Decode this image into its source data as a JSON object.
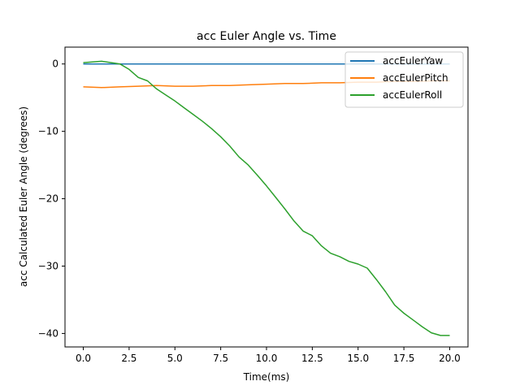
{
  "chart_data": {
    "type": "line",
    "title": "acc Euler Angle vs. Time",
    "xlabel": "Time(ms)",
    "ylabel": "acc Calculated Euler Angle (degrees)",
    "xlim": [
      -1.0,
      21.0
    ],
    "ylim": [
      -42.0,
      2.5
    ],
    "xticks": [
      0.0,
      2.5,
      5.0,
      7.5,
      10.0,
      12.5,
      15.0,
      17.5,
      20.0
    ],
    "xtick_labels": [
      "0.0",
      "2.5",
      "5.0",
      "7.5",
      "10.0",
      "12.5",
      "15.0",
      "17.5",
      "20.0"
    ],
    "yticks": [
      0,
      -10,
      -20,
      -30,
      -40
    ],
    "ytick_labels": [
      "0",
      "−10",
      "−20",
      "−30",
      "−40"
    ],
    "grid": false,
    "legend_position": "top-right",
    "series": [
      {
        "name": "accEulerYaw",
        "color": "#1f77b4",
        "x": [
          0.0,
          20.0
        ],
        "y": [
          0.0,
          0.0
        ]
      },
      {
        "name": "accEulerPitch",
        "color": "#ff7f0e",
        "x": [
          0.0,
          1.0,
          2.0,
          3.0,
          4.0,
          5.0,
          6.0,
          7.0,
          8.0,
          9.0,
          10.0,
          11.0,
          12.0,
          13.0,
          14.0,
          15.0,
          16.0,
          17.0,
          18.0,
          19.0,
          20.0
        ],
        "y": [
          -3.4,
          -3.5,
          -3.4,
          -3.3,
          -3.2,
          -3.3,
          -3.3,
          -3.2,
          -3.2,
          -3.1,
          -3.0,
          -2.9,
          -2.9,
          -2.8,
          -2.8,
          -2.7,
          -2.7,
          -2.6,
          -2.6,
          -2.5,
          -2.5
        ]
      },
      {
        "name": "accEulerRoll",
        "color": "#2ca02c",
        "x": [
          0.0,
          1.0,
          2.0,
          2.5,
          3.0,
          3.5,
          4.0,
          4.5,
          5.0,
          5.5,
          6.0,
          6.5,
          7.0,
          7.5,
          8.0,
          8.5,
          9.0,
          9.5,
          10.0,
          10.5,
          11.0,
          11.5,
          12.0,
          12.5,
          13.0,
          13.5,
          14.0,
          14.5,
          15.0,
          15.5,
          16.0,
          16.5,
          17.0,
          17.5,
          18.0,
          18.5,
          19.0,
          19.5,
          20.0
        ],
        "y": [
          0.2,
          0.4,
          0.0,
          -0.8,
          -2.0,
          -2.5,
          -3.7,
          -4.6,
          -5.5,
          -6.5,
          -7.5,
          -8.5,
          -9.6,
          -10.8,
          -12.2,
          -13.8,
          -15.0,
          -16.5,
          -18.1,
          -19.8,
          -21.5,
          -23.3,
          -24.8,
          -25.5,
          -27.0,
          -28.1,
          -28.6,
          -29.3,
          -29.7,
          -30.3,
          -32.0,
          -33.8,
          -35.8,
          -37.0,
          -38.0,
          -39.0,
          -39.9,
          -40.3,
          -40.3
        ]
      }
    ]
  }
}
